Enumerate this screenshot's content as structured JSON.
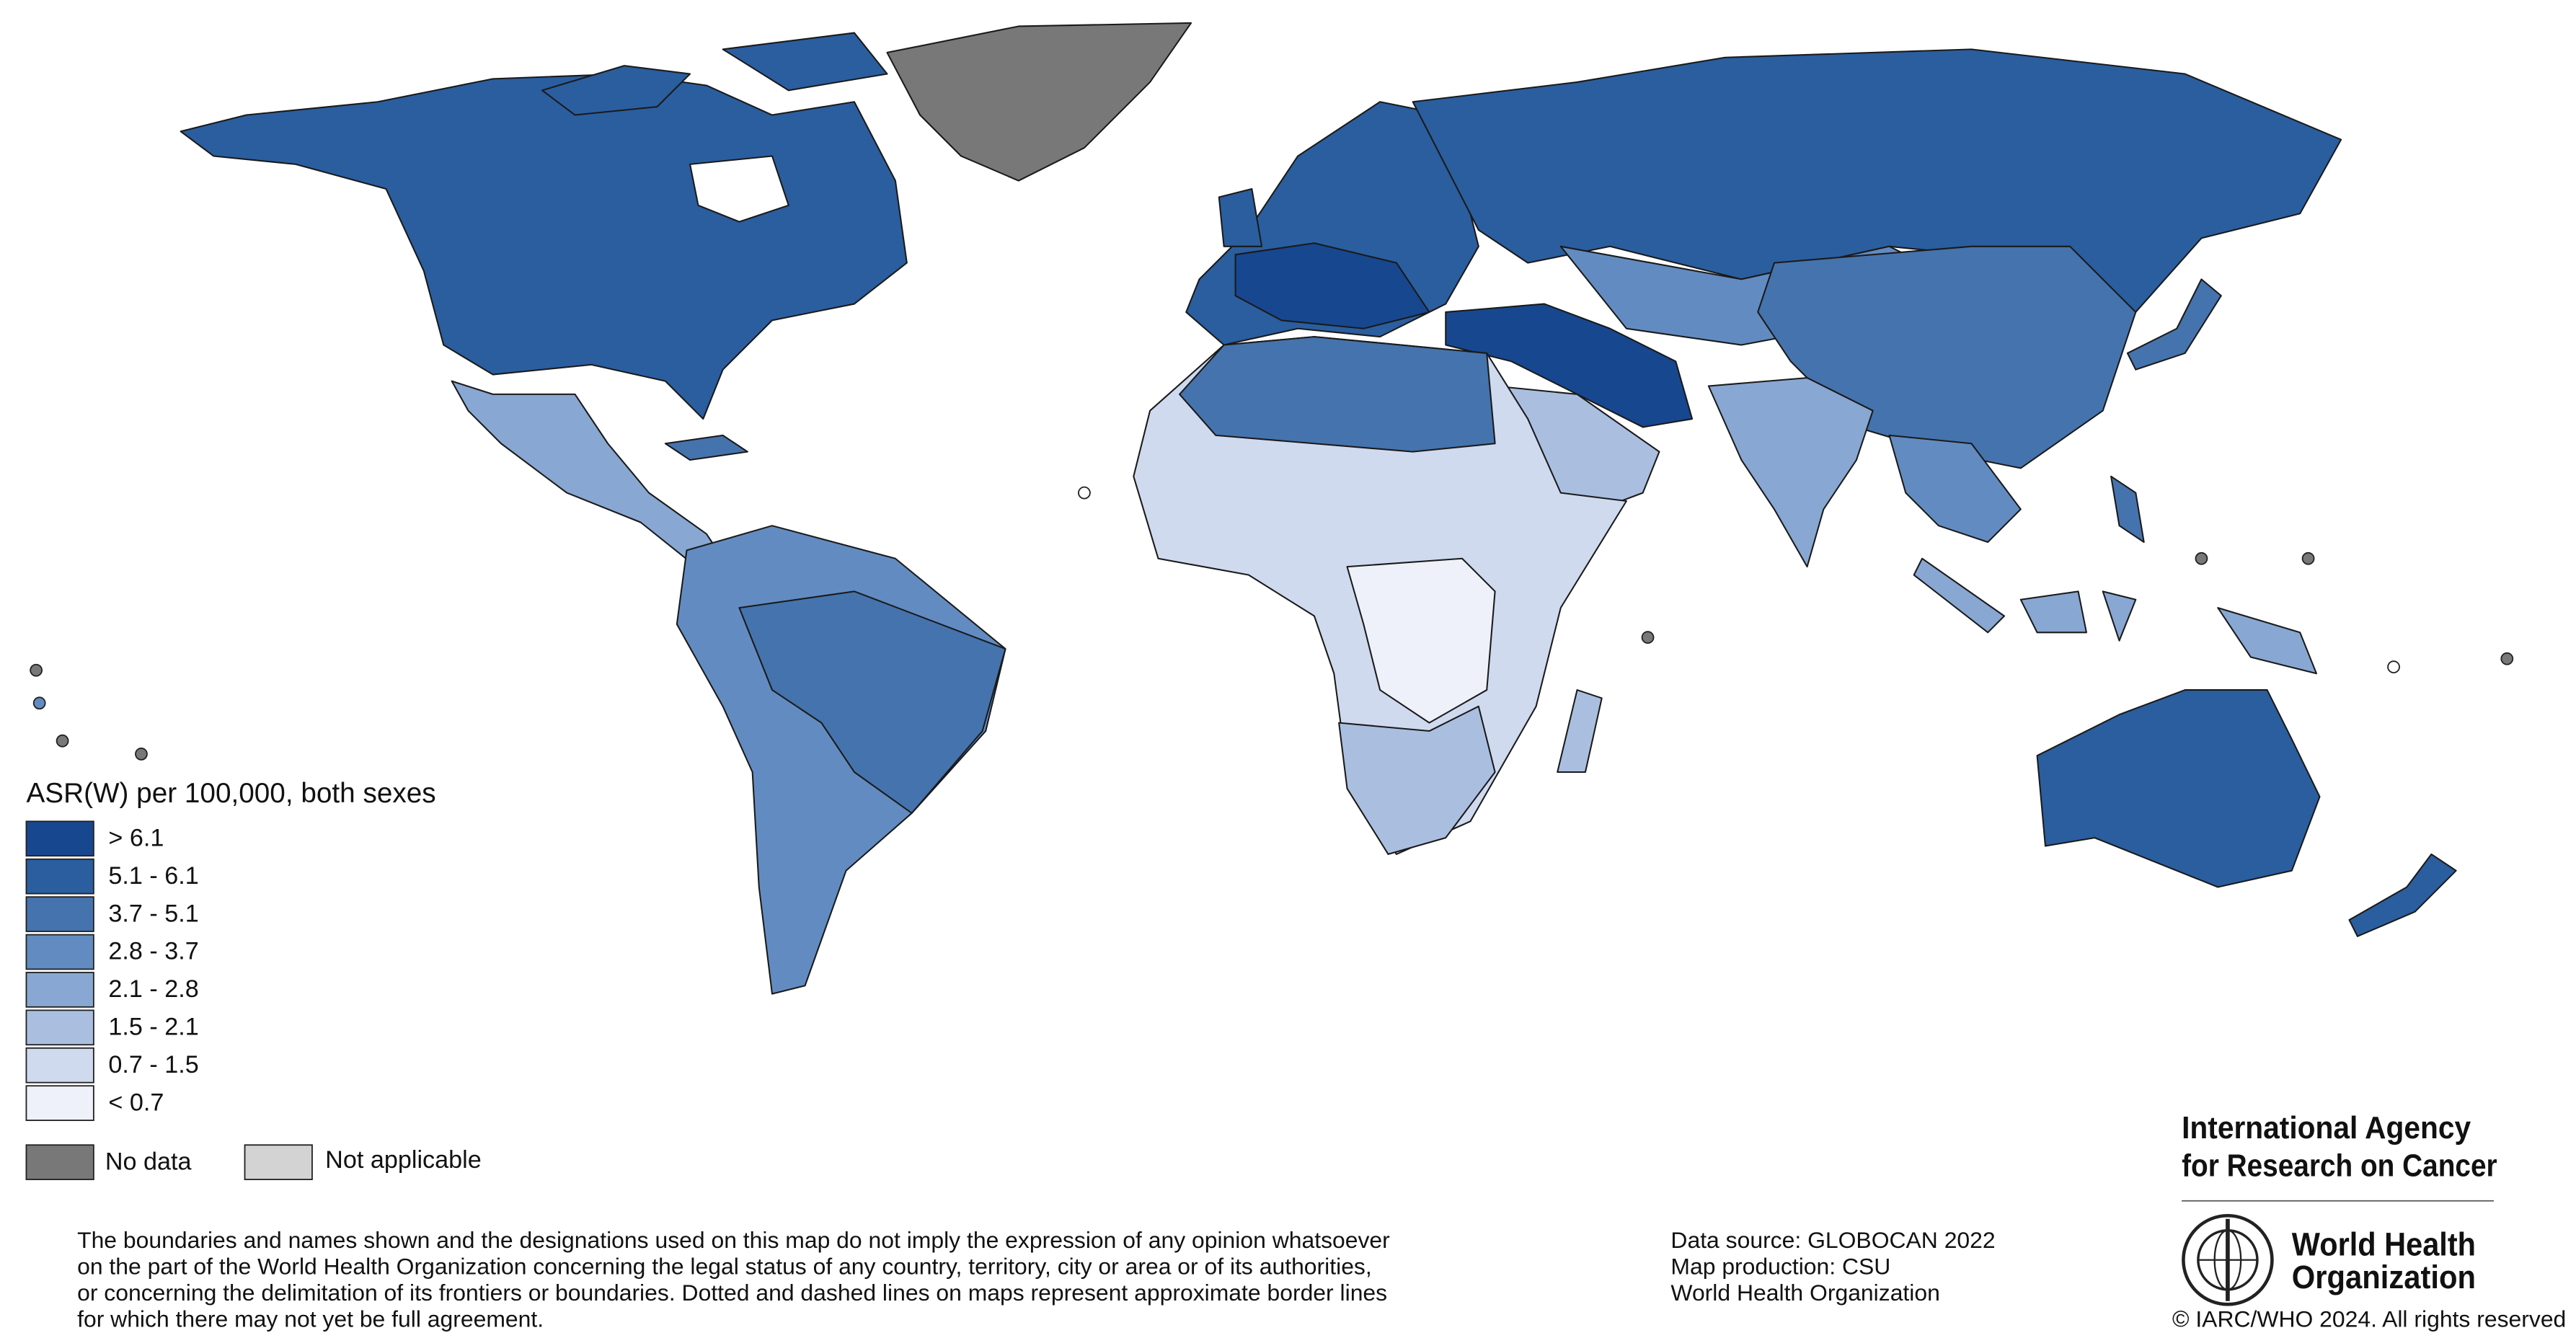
{
  "legend": {
    "title": "ASR(W) per 100,000, both sexes",
    "items": [
      {
        "label": "> 6.1",
        "color": "#17478f"
      },
      {
        "label": "5.1 - 6.1",
        "color": "#2a5e9f"
      },
      {
        "label": "3.7 - 5.1",
        "color": "#4573ad"
      },
      {
        "label": "2.8 - 3.7",
        "color": "#628cc1"
      },
      {
        "label": "2.1 - 2.8",
        "color": "#88a7d2"
      },
      {
        "label": "1.5 - 2.1",
        "color": "#aabfe0"
      },
      {
        "label": "0.7 - 1.5",
        "color": "#cfdaef"
      },
      {
        "label": "< 0.7",
        "color": "#eef1f9"
      }
    ],
    "no_data": {
      "label": "No data",
      "color": "#787878"
    },
    "not_applicable": {
      "label": "Not applicable",
      "color": "#d3d3d3"
    }
  },
  "disclaimer": [
    "The boundaries and names shown and the designations used on this map do not imply the expression of any opinion whatsoever",
    "on the part of the World Health Organization concerning the legal status of any country, territory, city or area or of its authorities,",
    "or concerning the delimitation of its frontiers or boundaries. Dotted and dashed lines on maps represent approximate border lines",
    "for which there may not yet be full agreement."
  ],
  "credits": [
    "Data source: GLOBOCAN 2022",
    "Map production: CSU",
    "World Health Organization"
  ],
  "iarc": [
    "International Agency",
    "for Research on Cancer"
  ],
  "who": [
    "World Health",
    "Organization"
  ],
  "copyright": "© IARC/WHO 2024. All rights reserved"
}
